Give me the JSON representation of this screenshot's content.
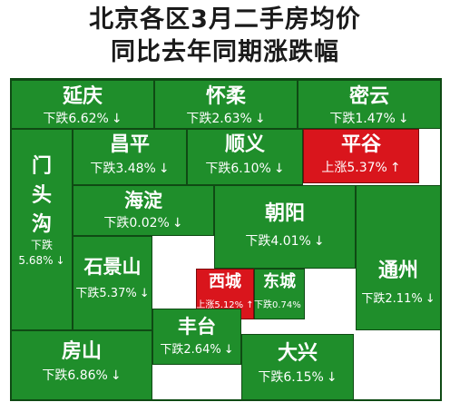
{
  "title_line1": "北京各区3月二手房均价",
  "title_line2": "同比去年同期涨跌幅",
  "colors": {
    "down": "#1f8e2b",
    "up": "#d9151c",
    "text": "#ffffff"
  },
  "chart_data": {
    "type": "treemap",
    "unit": "%",
    "districts": [
      {
        "name": "延庆",
        "direction": "下跌",
        "change": -6.62,
        "label": "下跌6.62%",
        "arrow": "↓"
      },
      {
        "name": "怀柔",
        "direction": "下跌",
        "change": -2.63,
        "label": "下跌2.63%",
        "arrow": "↓"
      },
      {
        "name": "密云",
        "direction": "下跌",
        "change": -1.47,
        "label": "下跌1.47%",
        "arrow": "↓"
      },
      {
        "name": "门头沟",
        "direction": "下跌",
        "change": -5.68,
        "label": "下跌",
        "label2": "5.68%",
        "arrow": "↓"
      },
      {
        "name": "昌平",
        "direction": "下跌",
        "change": -3.48,
        "label": "下跌3.48%",
        "arrow": "↓"
      },
      {
        "name": "顺义",
        "direction": "下跌",
        "change": -6.1,
        "label": "下跌6.10%",
        "arrow": "↓"
      },
      {
        "name": "平谷",
        "direction": "上涨",
        "change": 5.37,
        "label": "上涨5.37%",
        "arrow": "↑"
      },
      {
        "name": "海淀",
        "direction": "下跌",
        "change": -0.02,
        "label": "下跌0.02%",
        "arrow": "↓"
      },
      {
        "name": "朝阳",
        "direction": "下跌",
        "change": -4.01,
        "label": "下跌4.01%",
        "arrow": "↓"
      },
      {
        "name": "石景山",
        "direction": "下跌",
        "change": -5.37,
        "label": "下跌5.37%",
        "arrow": "↓"
      },
      {
        "name": "西城",
        "direction": "上涨",
        "change": 5.12,
        "label": "上涨5.12%",
        "arrow": "↑"
      },
      {
        "name": "东城",
        "direction": "下跌",
        "change": -0.74,
        "label": "下跌0.74%",
        "arrow": "↓"
      },
      {
        "name": "通州",
        "direction": "下跌",
        "change": -2.11,
        "label": "下跌2.11%",
        "arrow": "↓"
      },
      {
        "name": "丰台",
        "direction": "下跌",
        "change": -2.64,
        "label": "下跌2.64%",
        "arrow": "↓"
      },
      {
        "name": "房山",
        "direction": "下跌",
        "change": -6.86,
        "label": "下跌6.86%",
        "arrow": "↓"
      },
      {
        "name": "大兴",
        "direction": "下跌",
        "change": -6.15,
        "label": "下跌6.15%",
        "arrow": "↓"
      }
    ]
  }
}
